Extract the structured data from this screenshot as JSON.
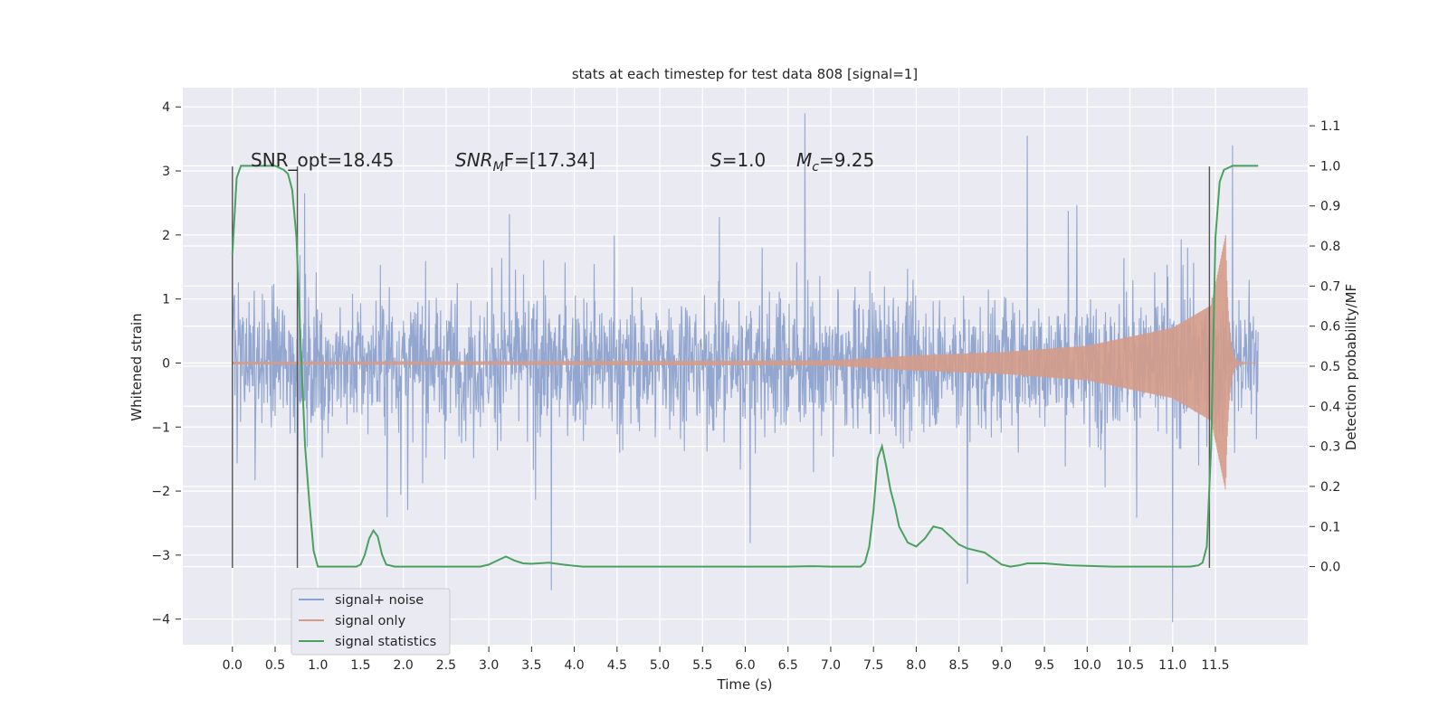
{
  "chart_data": {
    "type": "line",
    "title": "stats at each timestep for test data 808 [signal=1]",
    "xlabel": "Time (s)",
    "ylabel": "Whitened strain",
    "y2label": "Detection probability/MF",
    "xlim": [
      -0.58,
      12.58
    ],
    "ylim": [
      -4.4,
      4.3
    ],
    "y2lim": [
      -0.195,
      1.195
    ],
    "x_ticks": [
      "0.0",
      "0.5",
      "1.0",
      "1.5",
      "2.0",
      "2.5",
      "3.0",
      "3.5",
      "4.0",
      "4.5",
      "5.0",
      "5.5",
      "6.0",
      "6.5",
      "7.0",
      "7.5",
      "8.0",
      "8.5",
      "9.0",
      "9.5",
      "10.0",
      "10.5",
      "11.0",
      "11.5"
    ],
    "y_ticks": [
      "4",
      "3",
      "2",
      "1",
      "0",
      "−1",
      "−2",
      "−3",
      "−4"
    ],
    "y2_ticks": [
      "1.1",
      "1.0",
      "0.9",
      "0.8",
      "0.7",
      "0.6",
      "0.5",
      "0.4",
      "0.3",
      "0.2",
      "0.1",
      "0.0"
    ],
    "grid": true,
    "legend_position": "lower-left",
    "annotations": {
      "snr_opt": "SNR_opt=18.45",
      "snr_mf_main": "SNR",
      "snr_mf_sub": "M",
      "snr_mf_rest": "F=[17.34]",
      "s_main": "S",
      "s_rest": "=1.0",
      "mc_main": "M",
      "mc_sub": "c",
      "mc_rest": "=9.25"
    },
    "markers_x": [
      0.0,
      0.76,
      11.43
    ],
    "series": [
      {
        "name": "signal+ noise",
        "color": "#8da2cd",
        "description_values": {
          "x_start": 0.0,
          "x_end": 12.0,
          "typical_envelope": [
            -1.5,
            1.5
          ],
          "peaks": [
            {
              "x": 6.7,
              "y": 3.9
            },
            {
              "x": 9.3,
              "y": 3.55
            },
            {
              "x": 11.7,
              "y": 3.4
            },
            {
              "x": 11.0,
              "y": -4.05
            },
            {
              "x": 3.73,
              "y": -3.55
            },
            {
              "x": 8.6,
              "y": -3.45
            }
          ]
        }
      },
      {
        "name": "signal only",
        "color": "#d59c8a",
        "chirp": {
          "x_start": 0.0,
          "x_merger": 11.62,
          "x_end": 12.0,
          "amplitude_points": [
            [
              0.0,
              0.02
            ],
            [
              7.0,
              0.04
            ],
            [
              8.0,
              0.12
            ],
            [
              9.0,
              0.17
            ],
            [
              10.0,
              0.27
            ],
            [
              11.0,
              0.55
            ],
            [
              11.45,
              0.9
            ],
            [
              11.62,
              2.0
            ]
          ]
        }
      },
      {
        "name": "signal statistics",
        "color": "#4aa15f",
        "axis": "right",
        "x": [
          0.0,
          0.05,
          0.1,
          0.2,
          0.3,
          0.4,
          0.5,
          0.6,
          0.65,
          0.7,
          0.75,
          0.8,
          0.85,
          0.9,
          0.95,
          1.0,
          1.1,
          1.3,
          1.45,
          1.5,
          1.55,
          1.6,
          1.65,
          1.7,
          1.75,
          1.8,
          1.9,
          2.2,
          2.5,
          2.9,
          3.0,
          3.1,
          3.2,
          3.3,
          3.4,
          3.5,
          3.7,
          3.9,
          4.1,
          5.0,
          6.0,
          6.5,
          6.8,
          7.0,
          7.2,
          7.35,
          7.4,
          7.45,
          7.5,
          7.55,
          7.6,
          7.65,
          7.7,
          7.75,
          7.8,
          7.9,
          8.0,
          8.1,
          8.2,
          8.3,
          8.4,
          8.5,
          8.6,
          8.8,
          8.9,
          9.0,
          9.1,
          9.2,
          9.3,
          9.5,
          9.8,
          10.3,
          10.8,
          11.2,
          11.3,
          11.35,
          11.4,
          11.45,
          11.5,
          11.55,
          11.6,
          11.7,
          11.8,
          11.9,
          12.0
        ],
        "values": [
          0.78,
          0.97,
          1.0,
          1.0,
          1.0,
          1.0,
          1.0,
          0.99,
          0.98,
          0.94,
          0.82,
          0.55,
          0.3,
          0.16,
          0.04,
          0.0,
          0.0,
          0.0,
          0.0,
          0.005,
          0.03,
          0.07,
          0.09,
          0.075,
          0.03,
          0.005,
          0.0,
          0.0,
          0.0,
          0.0,
          0.005,
          0.015,
          0.025,
          0.015,
          0.008,
          0.007,
          0.01,
          0.004,
          0.0,
          0.0,
          0.0,
          0.0,
          0.001,
          0.0,
          0.0,
          0.0,
          0.01,
          0.05,
          0.14,
          0.27,
          0.3,
          0.25,
          0.19,
          0.15,
          0.1,
          0.06,
          0.05,
          0.07,
          0.1,
          0.095,
          0.075,
          0.055,
          0.045,
          0.035,
          0.02,
          0.005,
          0.0,
          0.003,
          0.008,
          0.008,
          0.003,
          0.0,
          0.0,
          0.0,
          0.003,
          0.01,
          0.05,
          0.3,
          0.82,
          0.96,
          0.99,
          1.0,
          1.0,
          1.0,
          1.0
        ]
      }
    ]
  }
}
